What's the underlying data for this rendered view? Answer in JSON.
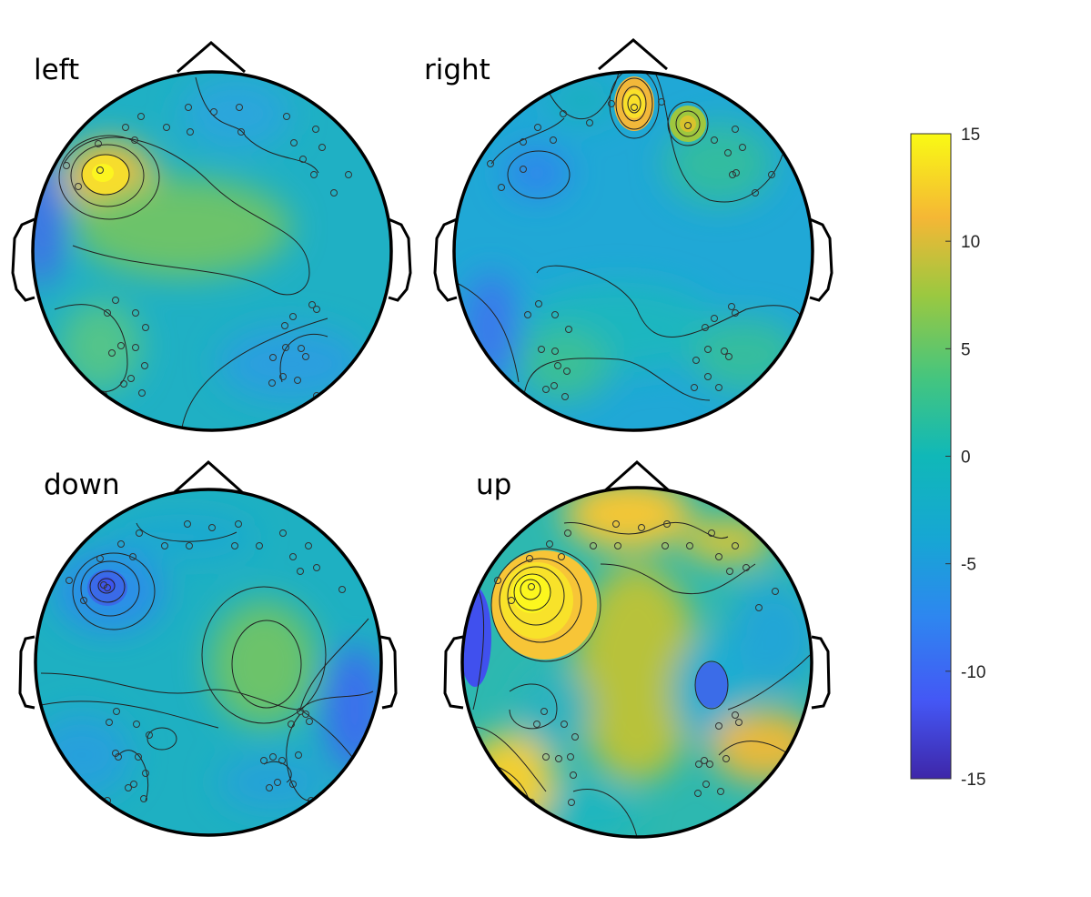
{
  "chart_data": {
    "type": "heatmap",
    "title": "",
    "colormap": "parula",
    "color_range": [
      -15,
      15
    ],
    "colorbar": {
      "ticks": [
        15,
        10,
        5,
        0,
        -5,
        -10,
        -15
      ],
      "tick_labels": [
        "15",
        "10",
        "5",
        "0",
        "-5",
        "-10",
        "-15"
      ],
      "placement": "right"
    },
    "panels": [
      {
        "label": "left",
        "hotspots": [
          {
            "site": "left frontal",
            "value": 13
          },
          {
            "site": "left temporal",
            "value": -8
          },
          {
            "site": "central",
            "value": 4
          }
        ]
      },
      {
        "label": "right",
        "hotspots": [
          {
            "site": "frontal midline",
            "value": 11
          },
          {
            "site": "right frontal",
            "value": 7
          },
          {
            "site": "left fronto-temporal",
            "value": -4
          },
          {
            "site": "left posterior temporal",
            "value": -6
          }
        ]
      },
      {
        "label": "down",
        "hotspots": [
          {
            "site": "left frontal",
            "value": -6
          },
          {
            "site": "right central",
            "value": 4
          },
          {
            "site": "right temporal",
            "value": -5
          }
        ]
      },
      {
        "label": "up",
        "hotspots": [
          {
            "site": "left frontal",
            "value": 15
          },
          {
            "site": "left temporal",
            "value": -10
          },
          {
            "site": "left occipital",
            "value": 13
          },
          {
            "site": "right central",
            "value": -6
          },
          {
            "site": "right temporal",
            "value": 10
          },
          {
            "site": "frontal",
            "value": 11
          }
        ]
      }
    ]
  },
  "colors": {
    "background": "#ffffff",
    "outline": "#000000"
  }
}
